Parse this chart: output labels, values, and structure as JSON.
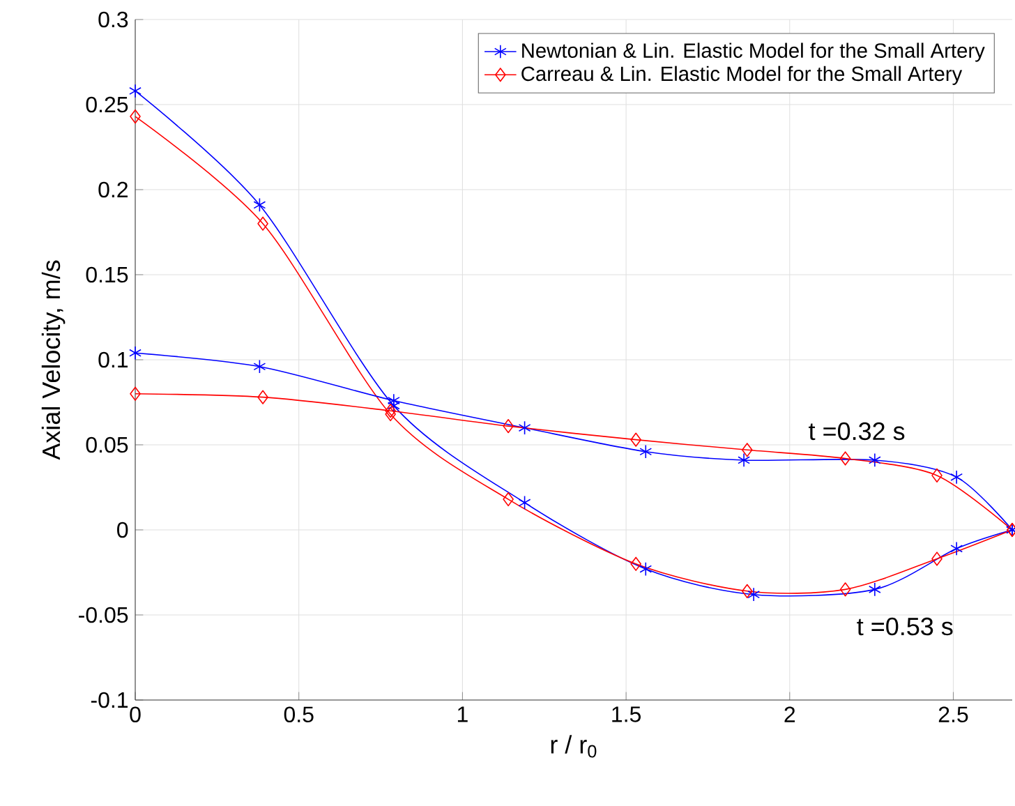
{
  "chart_data": {
    "type": "line",
    "xlabel": "r / r$_{0}$",
    "ylabel": "Axial Velocity, m/s",
    "xlim": [
      0,
      2.68
    ],
    "ylim": [
      -0.1,
      0.3
    ],
    "xticks": [
      0,
      0.5,
      1,
      1.5,
      2,
      2.5
    ],
    "yticks": [
      -0.1,
      -0.05,
      0,
      0.05,
      0.1,
      0.15,
      0.2,
      0.25,
      0.3
    ],
    "grid": true,
    "legend": "top right",
    "series": [
      {
        "name": "Newtonian & Lin. Elastic Model for the Small Artery",
        "color": "#0000ff",
        "marker": "cross",
        "x": [
          0,
          0.38,
          0.79,
          1.19,
          1.56,
          1.89,
          2.26,
          2.51,
          2.68
        ],
        "values": [
          0.258,
          0.191,
          0.073,
          0.016,
          -0.023,
          -0.038,
          -0.035,
          -0.011,
          0
        ]
      },
      {
        "name": "Carreau & Lin. Elastic Model for the Small Artery",
        "color": "#ff0000",
        "marker": "diamond",
        "x": [
          0,
          0.39,
          0.78,
          1.14,
          1.53,
          1.87,
          2.17,
          2.45,
          2.68
        ],
        "values": [
          0.243,
          0.18,
          0.068,
          0.018,
          -0.02,
          -0.036,
          -0.035,
          -0.017,
          0
        ]
      },
      {
        "color": "#0000ff",
        "marker": "cross",
        "x": [
          0,
          0.38,
          0.79,
          1.19,
          1.56,
          1.86,
          2.26,
          2.51,
          2.68
        ],
        "values": [
          0.104,
          0.096,
          0.076,
          0.06,
          0.046,
          0.041,
          0.041,
          0.031,
          0
        ]
      },
      {
        "color": "#ff0000",
        "marker": "diamond",
        "x": [
          0,
          0.39,
          0.78,
          1.14,
          1.53,
          1.87,
          2.17,
          2.45,
          2.68
        ],
        "values": [
          0.08,
          0.078,
          0.07,
          0.061,
          0.053,
          0.047,
          0.042,
          0.032,
          0
        ]
      }
    ],
    "annotations": [
      "t =0.32 s",
      "t =0.53 s"
    ]
  }
}
